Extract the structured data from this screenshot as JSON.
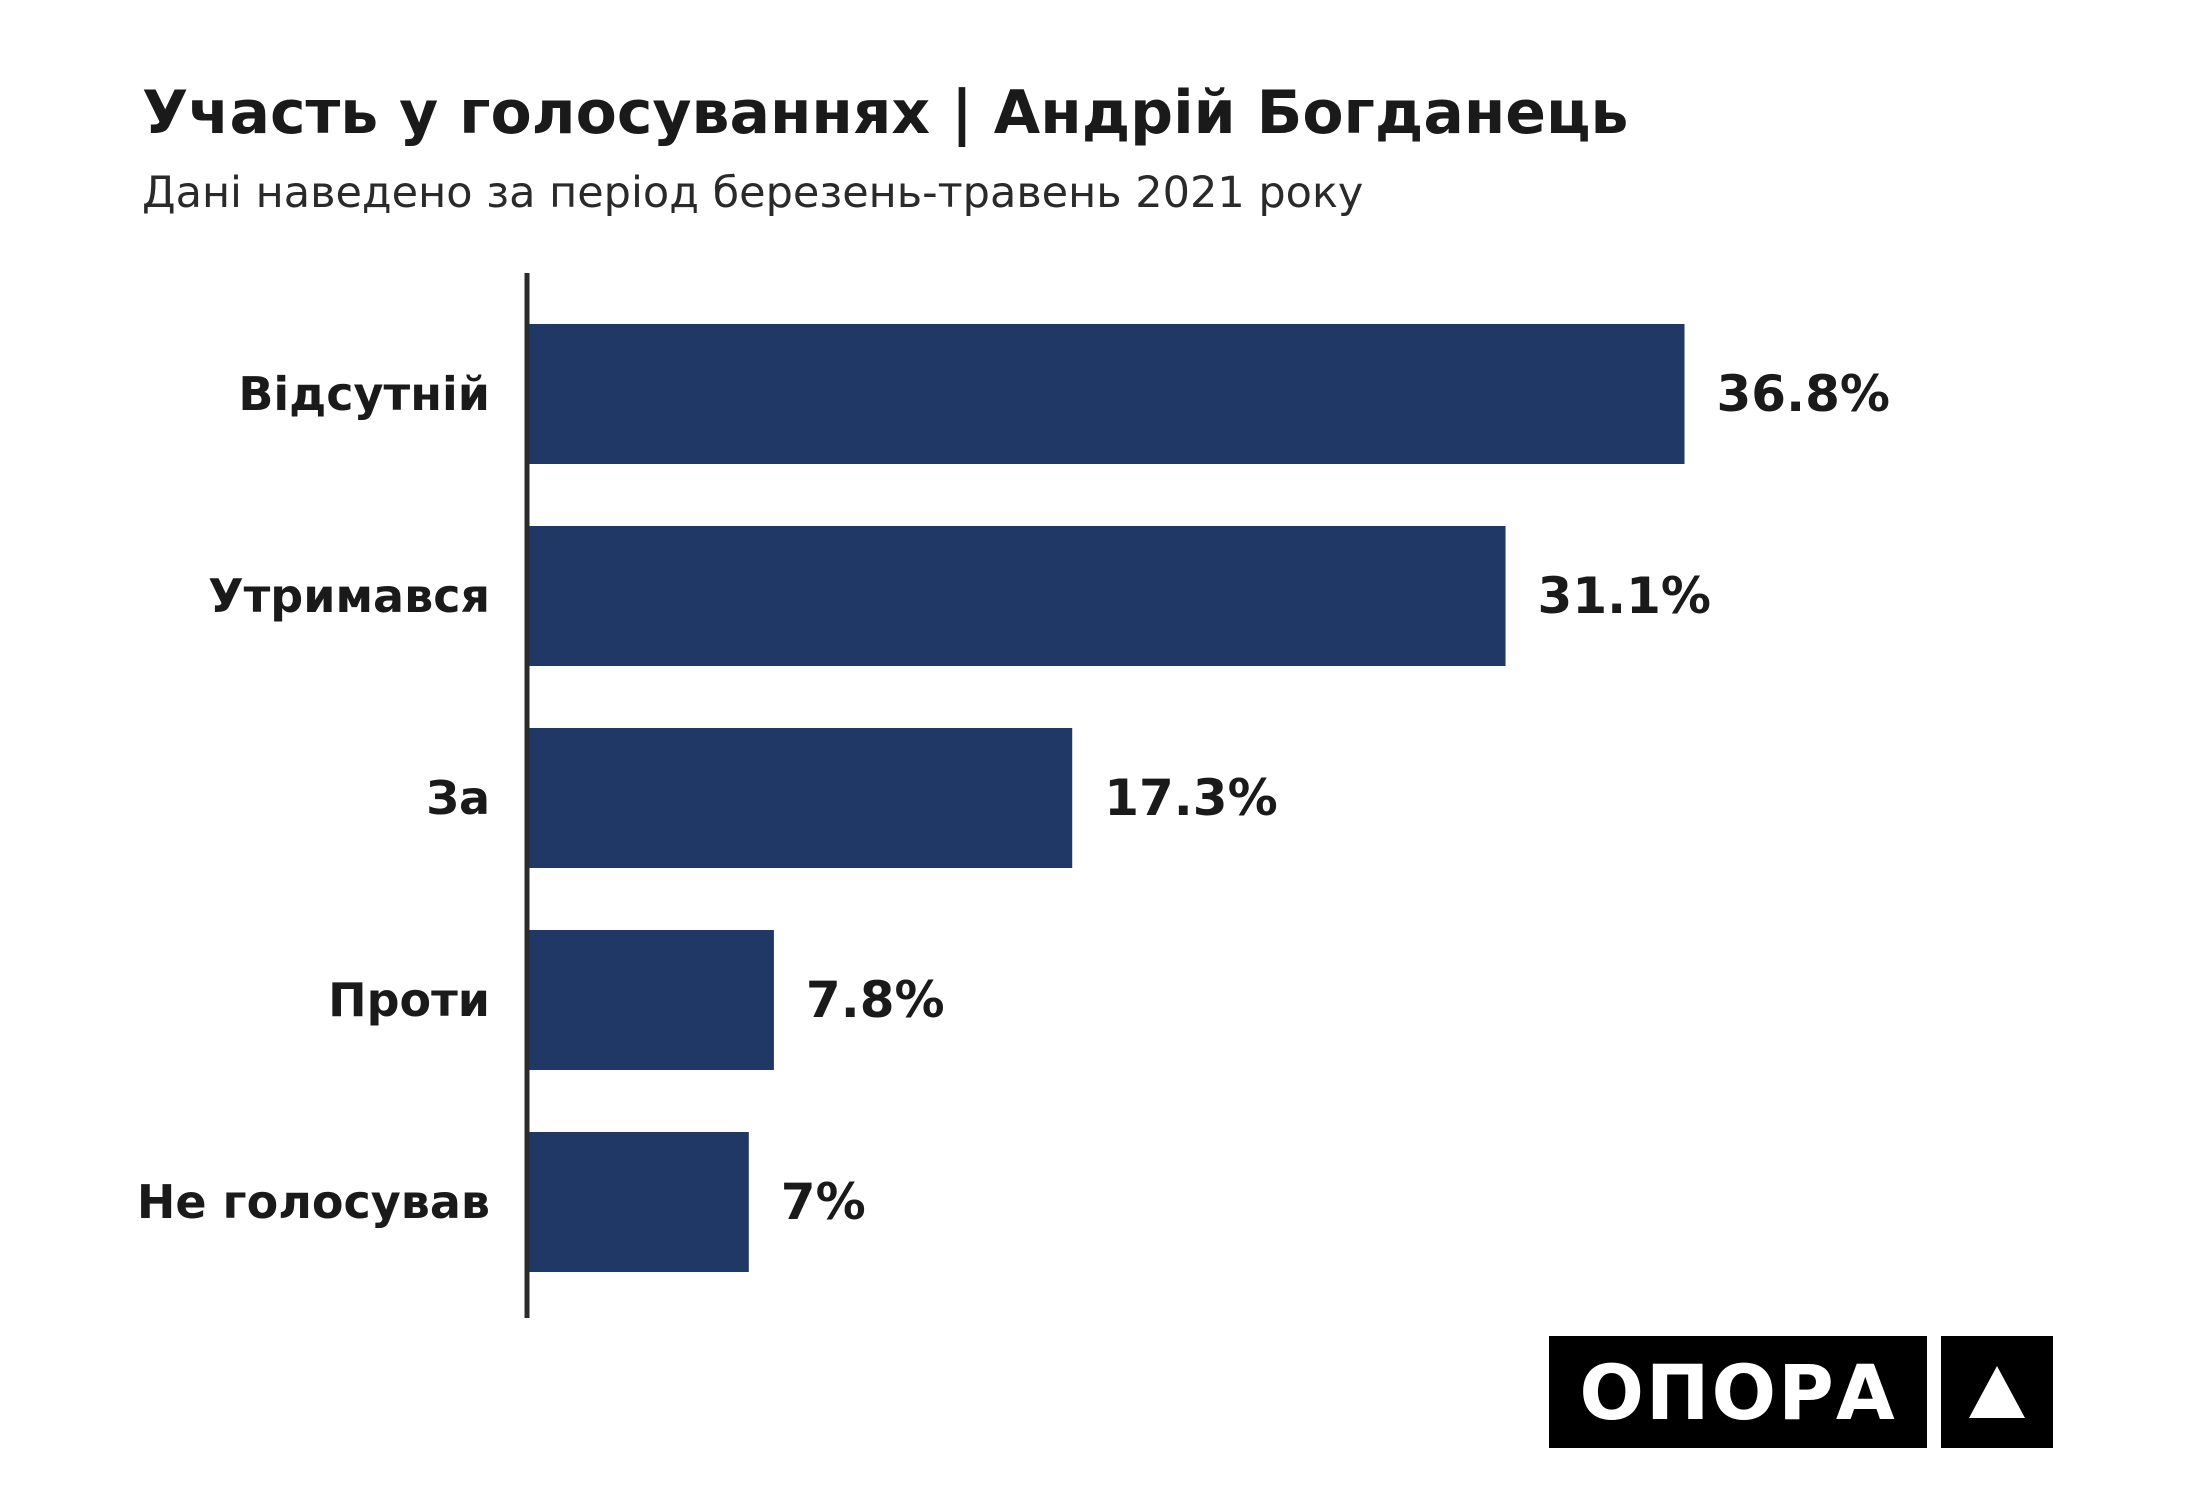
{
  "chart_data": {
    "type": "bar",
    "orientation": "horizontal",
    "title": "Участь у голосуваннях | Андрій Богданець",
    "subtitle": "Дані наведено за період березень-травень 2021 року",
    "categories": [
      "Відсутній",
      "Утримався",
      "За",
      "Проти",
      "Не голосував"
    ],
    "values": [
      36.8,
      31.1,
      17.3,
      7.8,
      7
    ],
    "value_labels": [
      "36.8%",
      "31.1%",
      "17.3%",
      "7.8%",
      "7%"
    ],
    "xlim": [
      0,
      40
    ],
    "grid": false,
    "legend": "none",
    "bar_color": "#1f3866",
    "axis_color": "#2b2b2b"
  },
  "brand": {
    "logo_text": "ОПОРА",
    "logo_color": "#000000"
  }
}
